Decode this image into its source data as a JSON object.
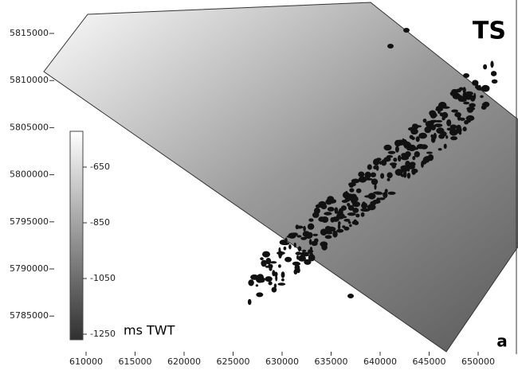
{
  "panel_label": "TS",
  "subfigure_label": "a",
  "x_axis": {
    "ticks": [
      610000,
      615000,
      620000,
      625000,
      630000,
      635000,
      640000,
      645000,
      650000
    ]
  },
  "y_axis": {
    "ticks": [
      5815000,
      5810000,
      5805000,
      5800000,
      5795000,
      5790000,
      5785000
    ]
  },
  "colorbar": {
    "ticks": [
      -650,
      -850,
      -1050,
      -1250
    ],
    "unit": "ms TWT"
  }
}
